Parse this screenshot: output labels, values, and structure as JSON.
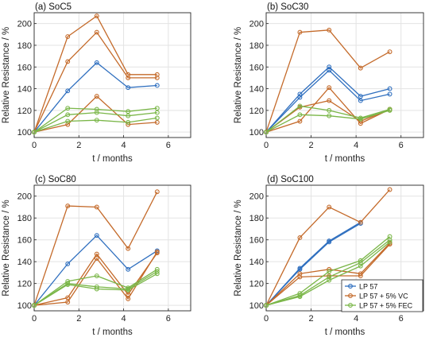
{
  "colors": {
    "LP 57": "#2F6FBF",
    "LP 57 + 5% VC": "#C46A2A",
    "LP 57 + 5% FEC": "#7AB648"
  },
  "chart_data": [
    {
      "type": "line",
      "title": "(a) SoC5",
      "xlabel": "t / months",
      "ylabel": "Relative Resistance / %",
      "xlim": [
        0,
        7
      ],
      "ylim": [
        95,
        210
      ],
      "xticks": [
        0,
        2,
        4,
        6
      ],
      "yticks": [
        100,
        120,
        140,
        160,
        180,
        200
      ],
      "grid": true,
      "x": [
        0,
        1.5,
        2.8,
        4.2,
        5.5
      ],
      "series": [
        {
          "group": "LP 57",
          "values": [
            100,
            138,
            164,
            141,
            143
          ]
        },
        {
          "group": "LP 57 + 5% VC",
          "values": [
            100,
            188,
            207,
            153,
            153
          ]
        },
        {
          "group": "LP 57 + 5% VC",
          "values": [
            100,
            165,
            192,
            150,
            150
          ]
        },
        {
          "group": "LP 57 + 5% VC",
          "values": [
            100,
            107,
            133,
            107,
            109
          ]
        },
        {
          "group": "LP 57 + 5% FEC",
          "values": [
            100,
            122,
            121,
            119,
            122
          ]
        },
        {
          "group": "LP 57 + 5% FEC",
          "values": [
            100,
            116,
            118,
            115,
            118
          ]
        },
        {
          "group": "LP 57 + 5% FEC",
          "values": [
            100,
            110,
            111,
            109,
            113
          ]
        }
      ]
    },
    {
      "type": "line",
      "title": "(b) SoC30",
      "xlabel": "t / months",
      "ylabel": "Relative Resistance / %",
      "xlim": [
        0,
        7
      ],
      "ylim": [
        95,
        210
      ],
      "xticks": [
        0,
        2,
        4,
        6
      ],
      "yticks": [
        100,
        120,
        140,
        160,
        180,
        200
      ],
      "grid": true,
      "x": [
        0,
        1.5,
        2.8,
        4.2,
        5.5
      ],
      "series": [
        {
          "group": "LP 57",
          "values": [
            100,
            135,
            160,
            133,
            140
          ]
        },
        {
          "group": "LP 57",
          "values": [
            100,
            132,
            157,
            129,
            135
          ]
        },
        {
          "group": "LP 57 + 5% VC",
          "values": [
            100,
            192,
            194,
            159,
            174
          ]
        },
        {
          "group": "LP 57 + 5% VC",
          "values": [
            100,
            110,
            141,
            108,
            121
          ]
        },
        {
          "group": "LP 57 + 5% VC",
          "values": [
            100,
            123,
            129,
            110,
            121
          ]
        },
        {
          "group": "LP 57 + 5% FEC",
          "values": [
            100,
            124,
            120,
            113,
            121
          ]
        },
        {
          "group": "LP 57 + 5% FEC",
          "values": [
            100,
            116,
            115,
            112,
            120
          ]
        }
      ]
    },
    {
      "type": "line",
      "title": "(c) SoC80",
      "xlabel": "t / months",
      "ylabel": "Relative Resistance / %",
      "xlim": [
        0,
        7
      ],
      "ylim": [
        95,
        210
      ],
      "xticks": [
        0,
        2,
        4,
        6
      ],
      "yticks": [
        100,
        120,
        140,
        160,
        180,
        200
      ],
      "grid": true,
      "x": [
        0,
        1.5,
        2.8,
        4.2,
        5.5
      ],
      "series": [
        {
          "group": "LP 57",
          "values": [
            100,
            138,
            164,
            133,
            150
          ]
        },
        {
          "group": "LP 57 + 5% VC",
          "values": [
            100,
            191,
            190,
            152,
            204
          ]
        },
        {
          "group": "LP 57 + 5% VC",
          "values": [
            100,
            107,
            147,
            110,
            148
          ]
        },
        {
          "group": "LP 57 + 5% VC",
          "values": [
            100,
            103,
            143,
            106,
            149
          ]
        },
        {
          "group": "LP 57 + 5% FEC",
          "values": [
            100,
            122,
            127,
            116,
            133
          ]
        },
        {
          "group": "LP 57 + 5% FEC",
          "values": [
            100,
            120,
            117,
            115,
            131
          ]
        },
        {
          "group": "LP 57 + 5% FEC",
          "values": [
            100,
            119,
            115,
            114,
            129
          ]
        }
      ]
    },
    {
      "type": "line",
      "title": "(d) SoC100",
      "xlabel": "t / months",
      "ylabel": "Relative Resistance / %",
      "xlim": [
        0,
        7
      ],
      "ylim": [
        95,
        210
      ],
      "xticks": [
        0,
        2,
        4,
        6
      ],
      "yticks": [
        100,
        120,
        140,
        160,
        180,
        200
      ],
      "grid": true,
      "legend": {
        "position": "bottom-right",
        "entries": [
          "LP 57",
          "LP 57 + 5% VC",
          "LP 57 + 5% FEC"
        ]
      },
      "series": [
        {
          "group": "LP 57",
          "x": [
            0,
            1.5,
            2.8,
            4.2
          ],
          "values": [
            100,
            134,
            159,
            176
          ]
        },
        {
          "group": "LP 57",
          "x": [
            0,
            1.5,
            2.8,
            4.2
          ],
          "values": [
            100,
            133,
            158,
            175
          ]
        },
        {
          "group": "LP 57 + 5% VC",
          "x": [
            0,
            1.5,
            2.8,
            4.2,
            5.5
          ],
          "values": [
            100,
            162,
            190,
            176,
            206
          ]
        },
        {
          "group": "LP 57 + 5% VC",
          "x": [
            0,
            1.5,
            2.8,
            4.2,
            5.5
          ],
          "values": [
            100,
            129,
            133,
            129,
            157
          ]
        },
        {
          "group": "LP 57 + 5% VC",
          "x": [
            0,
            1.5,
            2.8,
            4.2,
            5.5
          ],
          "values": [
            100,
            126,
            127,
            127,
            156
          ]
        },
        {
          "group": "LP 57 + 5% FEC",
          "x": [
            0,
            1.5,
            2.8,
            4.2,
            5.5
          ],
          "values": [
            100,
            111,
            131,
            141,
            163
          ]
        },
        {
          "group": "LP 57 + 5% FEC",
          "x": [
            0,
            1.5,
            2.8,
            4.2,
            5.5
          ],
          "values": [
            100,
            109,
            126,
            139,
            160
          ]
        },
        {
          "group": "LP 57 + 5% FEC",
          "x": [
            0,
            1.5,
            2.8,
            4.2,
            5.5
          ],
          "values": [
            100,
            108,
            123,
            136,
            158
          ]
        }
      ]
    }
  ]
}
